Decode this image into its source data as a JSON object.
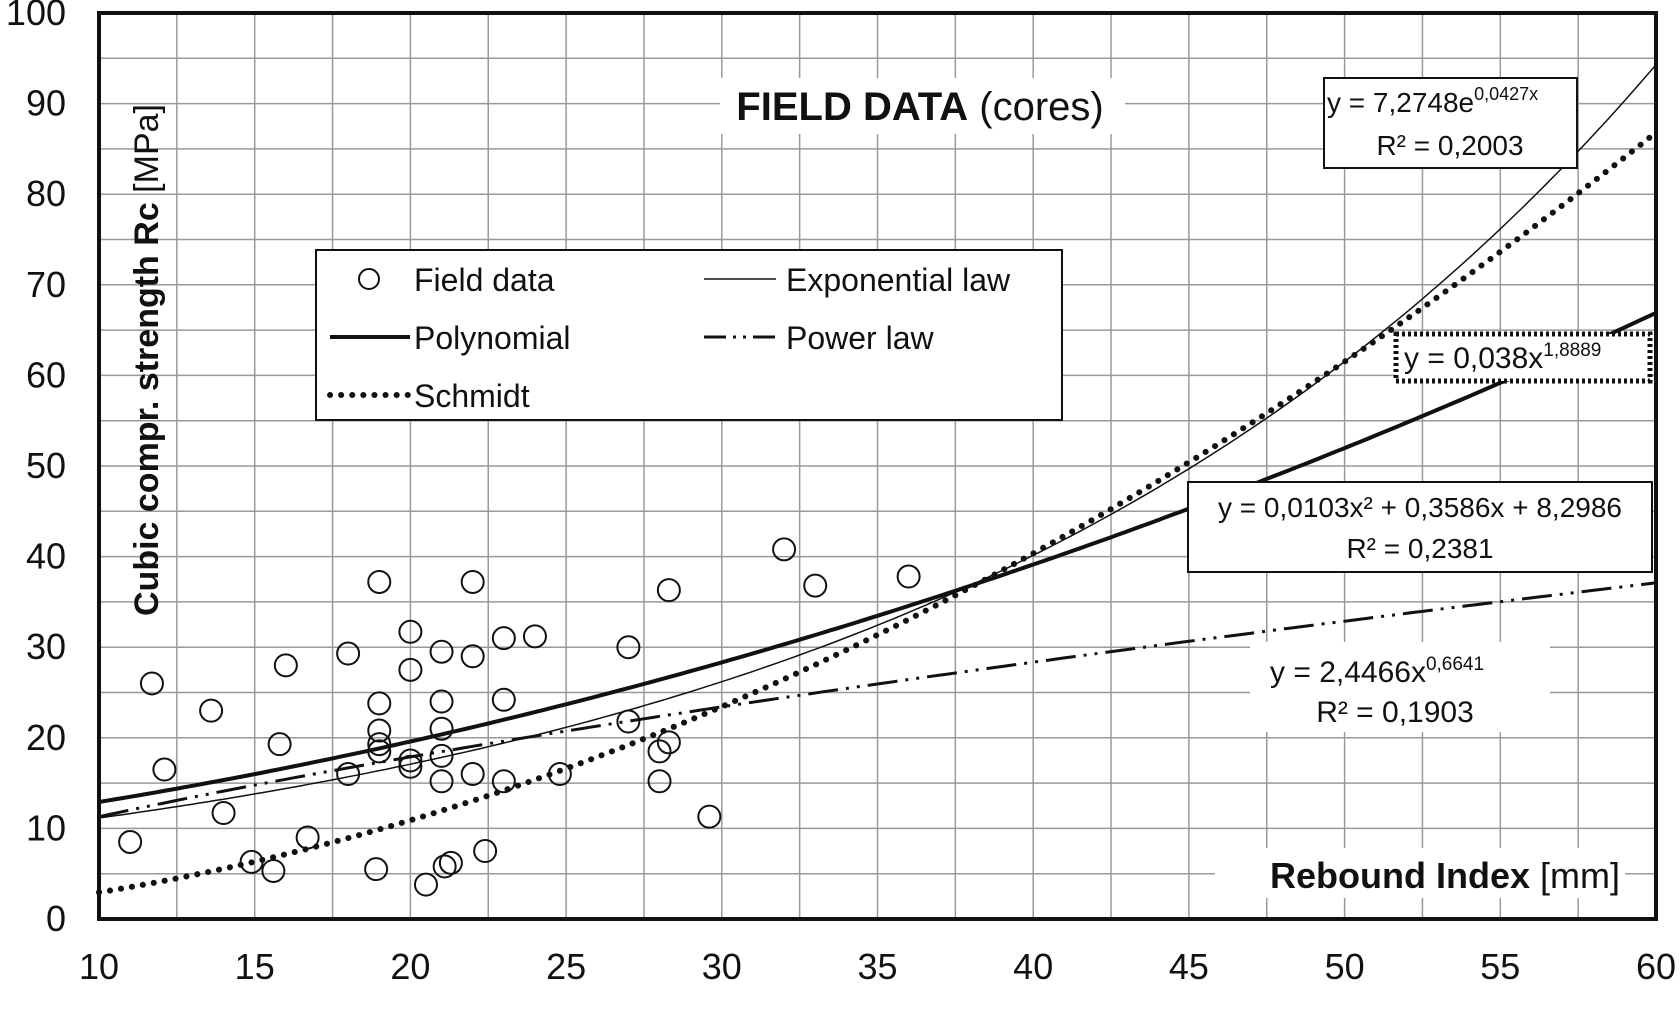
{
  "chart_data": {
    "type": "scatter",
    "title": "FIELD DATA",
    "title_suffix": "(cores)",
    "xlabel": "Rebound Index",
    "xlabel_unit": "[mm]",
    "ylabel": "Cubic compr. strength Rc",
    "ylabel_unit": "[MPa]",
    "xlim": [
      10,
      60
    ],
    "ylim": [
      0,
      100
    ],
    "xticks": [
      "10",
      "15",
      "20",
      "25",
      "30",
      "35",
      "40",
      "45",
      "50",
      "55",
      "60"
    ],
    "yticks": [
      "0",
      "10",
      "20",
      "30",
      "40",
      "50",
      "60",
      "70",
      "80",
      "90",
      "100"
    ],
    "grid": true,
    "legend_position": "upper-left",
    "legend": [
      "Field data",
      "Exponential law",
      "Polynomial",
      "Power law",
      "Schmidt"
    ],
    "points": [
      [
        11,
        8.5
      ],
      [
        11.7,
        26
      ],
      [
        12.1,
        16.5
      ],
      [
        13.6,
        23
      ],
      [
        14,
        11.7
      ],
      [
        14.9,
        6.3
      ],
      [
        15.6,
        5.3
      ],
      [
        15.8,
        19.3
      ],
      [
        16,
        28
      ],
      [
        16.7,
        9
      ],
      [
        18,
        29.3
      ],
      [
        18,
        16
      ],
      [
        18.9,
        5.5
      ],
      [
        19,
        37.2
      ],
      [
        19,
        23.8
      ],
      [
        19,
        20.8
      ],
      [
        19,
        19.3
      ],
      [
        19,
        18.5
      ],
      [
        20,
        31.7
      ],
      [
        20,
        27.5
      ],
      [
        20,
        17.5
      ],
      [
        20,
        16.8
      ],
      [
        20.5,
        3.8
      ],
      [
        21,
        29.5
      ],
      [
        21,
        24
      ],
      [
        21,
        21
      ],
      [
        21,
        18
      ],
      [
        21,
        15.2
      ],
      [
        21.1,
        5.8
      ],
      [
        21.3,
        6.2
      ],
      [
        22,
        37.2
      ],
      [
        22,
        29
      ],
      [
        22,
        16
      ],
      [
        22.4,
        7.5
      ],
      [
        23,
        31
      ],
      [
        23,
        24.2
      ],
      [
        23,
        15.2
      ],
      [
        24,
        31.2
      ],
      [
        24.8,
        16
      ],
      [
        27,
        30
      ],
      [
        27,
        21.8
      ],
      [
        28,
        18.5
      ],
      [
        28,
        15.2
      ],
      [
        28.3,
        19.5
      ],
      [
        28.3,
        36.3
      ],
      [
        29.6,
        11.3
      ],
      [
        32,
        40.8
      ],
      [
        33,
        36.8
      ],
      [
        36,
        37.8
      ]
    ],
    "fits": {
      "exponential": {
        "a": 7.2748,
        "b": 0.0427,
        "eq": "y = 7,2748e",
        "exp": "0,0427x",
        "r2": "R² = 0,2003"
      },
      "polynomial": {
        "a": 0.0103,
        "b": 0.3586,
        "c": 8.2986,
        "eq": "y = 0,0103x² + 0,3586x + 8,2986",
        "r2": "R² = 0,2381"
      },
      "power": {
        "a": 2.4466,
        "b": 0.6641,
        "eq": "y = 2,4466x",
        "exp": "0,6641",
        "r2": "R² = 0,1903"
      },
      "schmidt": {
        "a": 0.038,
        "b": 1.8889,
        "eq": "y = 0,038x",
        "exp": "1,8889"
      }
    }
  }
}
